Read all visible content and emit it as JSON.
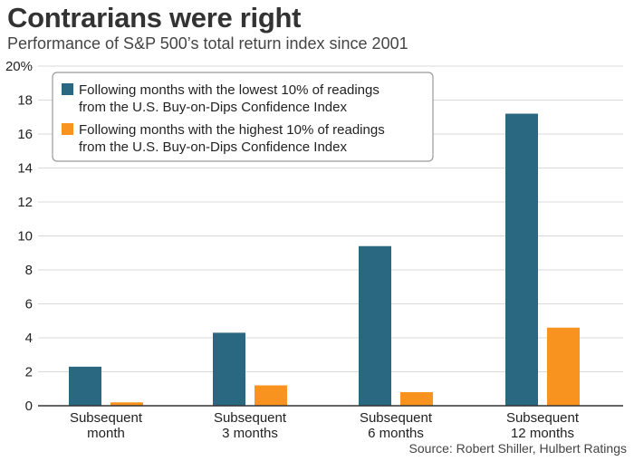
{
  "header": {
    "title": "Contrarians were right",
    "subtitle": "Performance of S&P 500’s total return index since 2001"
  },
  "footer": {
    "source": "Source: Robert Shiller, Hulbert Ratings"
  },
  "colors": {
    "series_low": "#2a6882",
    "series_high": "#f7931e",
    "grid": "#d9d9d9",
    "axis": "#333333"
  },
  "chart_data": {
    "type": "bar",
    "title": "Contrarians were right",
    "subtitle": "Performance of S&P 500’s total return index since 2001",
    "xlabel": "",
    "ylabel": "",
    "ylim": [
      0,
      20
    ],
    "yticks": [
      0,
      2,
      4,
      6,
      8,
      10,
      12,
      14,
      16,
      18,
      20
    ],
    "ytick_labels": [
      "0",
      "2",
      "4",
      "6",
      "8",
      "10",
      "12",
      "14",
      "16",
      "18",
      "20%"
    ],
    "grid": true,
    "legend_position": "top-left",
    "categories": [
      [
        "Subsequent",
        "month"
      ],
      [
        "Subsequent",
        "3 months"
      ],
      [
        "Subsequent",
        "6 months"
      ],
      [
        "Subsequent",
        "12 months"
      ]
    ],
    "series": [
      {
        "name": "Following months with the lowest 10% of readings from the U.S. Buy-on-Dips Confidence Index",
        "legend_lines": [
          "Following months with the lowest 10% of readings",
          "from the U.S. Buy-on-Dips Confidence Index"
        ],
        "values": [
          2.3,
          4.3,
          9.4,
          17.2
        ]
      },
      {
        "name": "Following months with the highest 10% of readings from the U.S. Buy-on-Dips Confidence Index",
        "legend_lines": [
          "Following months with the highest 10% of readings",
          "from the U.S. Buy-on-Dips Confidence Index"
        ],
        "values": [
          0.2,
          1.2,
          0.8,
          4.6
        ]
      }
    ],
    "source": "Source: Robert Shiller, Hulbert Ratings"
  }
}
